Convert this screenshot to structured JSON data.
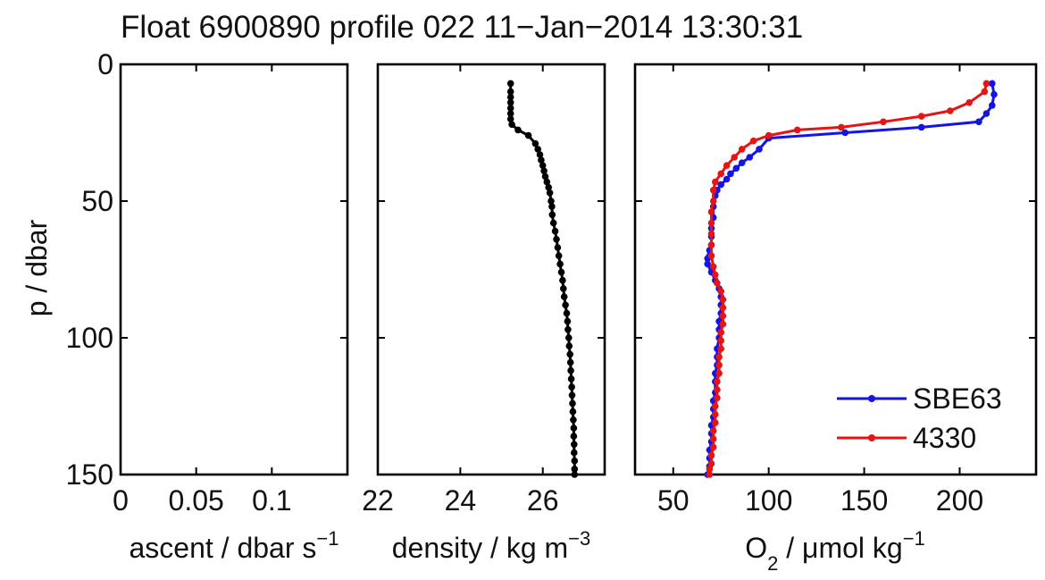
{
  "title": "Float 6900890 profile 022 11−Jan−2014 13:30:31",
  "ylabel": "p / dbar",
  "colors": {
    "sbe63": "#1414e6",
    "o4330": "#e61414",
    "density": "#000000"
  },
  "chart_data": [
    {
      "type": "line",
      "panel": "ascent",
      "xlabel": "ascent / dbar s",
      "xlabel_sup": "−1",
      "xlim": [
        0,
        0.15
      ],
      "ylim": [
        0,
        150
      ],
      "y_reversed": true,
      "xticks": [
        0,
        0.05,
        0.1
      ],
      "xtick_labels": [
        "0",
        "0.05",
        "0.1"
      ],
      "yticks": [
        0,
        50,
        100,
        150
      ],
      "ytick_labels": [
        "0",
        "50",
        "100",
        "150"
      ],
      "series": []
    },
    {
      "type": "line",
      "panel": "density",
      "xlabel": "density / kg m",
      "xlabel_sup": "−3",
      "xlim": [
        22,
        27.5
      ],
      "ylim": [
        0,
        150
      ],
      "y_reversed": true,
      "xticks": [
        22,
        24,
        26
      ],
      "xtick_labels": [
        "22",
        "24",
        "26"
      ],
      "series": [
        {
          "color": "#000000",
          "x": [
            25.22,
            25.22,
            25.22,
            25.22,
            25.22,
            25.22,
            25.22,
            25.25,
            25.4,
            25.65,
            25.82,
            25.88,
            25.93,
            25.96,
            26.0,
            26.03,
            26.06,
            26.1,
            26.14,
            26.17,
            26.2,
            26.22,
            26.23,
            26.26,
            26.3,
            26.33,
            26.36,
            26.39,
            26.42,
            26.45,
            26.48,
            26.5,
            26.52,
            26.55,
            26.58,
            26.6,
            26.61,
            26.63,
            26.64,
            26.66,
            26.67,
            26.68,
            26.69,
            26.7,
            26.71,
            26.72,
            26.73,
            26.74,
            26.75,
            26.75,
            26.76,
            26.76,
            26.77,
            26.77,
            26.77,
            26.78,
            26.78
          ],
          "y": [
            7,
            10,
            12,
            14,
            16,
            18,
            20,
            22,
            24,
            26,
            29,
            31,
            33,
            35,
            37,
            39,
            41,
            43,
            45,
            47,
            50,
            52,
            55,
            58,
            61,
            64,
            67,
            70,
            73,
            76,
            79,
            82,
            85,
            88,
            91,
            94,
            97,
            100,
            103,
            106,
            109,
            112,
            115,
            118,
            121,
            124,
            127,
            130,
            133,
            136,
            139,
            142,
            145,
            148,
            150,
            152,
            154
          ]
        }
      ]
    },
    {
      "type": "line",
      "panel": "oxygen",
      "xlabel": "O",
      "xlabel_sub": "2",
      "xlabel_rest": " / μmol kg",
      "xlabel_sup": "−1",
      "xlim": [
        30,
        240
      ],
      "ylim": [
        0,
        150
      ],
      "y_reversed": true,
      "xticks": [
        50,
        100,
        150,
        200
      ],
      "xtick_labels": [
        "50",
        "100",
        "150",
        "200"
      ],
      "legend_loc": "bottom-right",
      "series": [
        {
          "name": "SBE63",
          "color": "#1414e6",
          "x": [
            217,
            218,
            217,
            214,
            210,
            180,
            140,
            100,
            95,
            90,
            86,
            83,
            80,
            78,
            75,
            73,
            72,
            71,
            71,
            70,
            70,
            70,
            69,
            69,
            68,
            68,
            70,
            72,
            74,
            75,
            75,
            75,
            74,
            74,
            74,
            73,
            73,
            73,
            72,
            72,
            72,
            71,
            71,
            71,
            70,
            70,
            70,
            69,
            69,
            69,
            68
          ],
          "y": [
            7,
            11,
            15,
            18,
            21,
            23,
            25,
            27,
            31,
            34,
            36,
            38,
            40,
            42,
            44,
            46,
            48,
            52,
            56,
            60,
            63,
            66,
            68,
            70,
            71,
            73,
            76,
            79,
            82,
            85,
            88,
            91,
            94,
            97,
            100,
            104,
            107,
            110,
            113,
            116,
            120,
            123,
            126,
            129,
            132,
            135,
            138,
            141,
            144,
            147,
            150
          ]
        },
        {
          "name": "4330",
          "color": "#e61414",
          "x": [
            214,
            213,
            205,
            195,
            180,
            160,
            138,
            115,
            100,
            92,
            86,
            82,
            78,
            75,
            72,
            71,
            71,
            70,
            70,
            70,
            70,
            70,
            71,
            72,
            73,
            75,
            76,
            76,
            76,
            76,
            75,
            75,
            75,
            74,
            74,
            74,
            73,
            73,
            73,
            72,
            72,
            72,
            71,
            71,
            71,
            70,
            70,
            69,
            69,
            68
          ],
          "y": [
            7,
            10,
            14,
            17,
            19,
            21,
            23,
            24,
            26,
            28,
            31,
            34,
            37,
            40,
            43,
            46,
            50,
            54,
            58,
            62,
            66,
            70,
            74,
            77,
            80,
            83,
            86,
            89,
            92,
            95,
            98,
            101,
            104,
            107,
            110,
            113,
            116,
            119,
            122,
            125,
            128,
            131,
            134,
            137,
            140,
            143,
            146,
            148,
            150,
            152
          ]
        }
      ]
    }
  ]
}
